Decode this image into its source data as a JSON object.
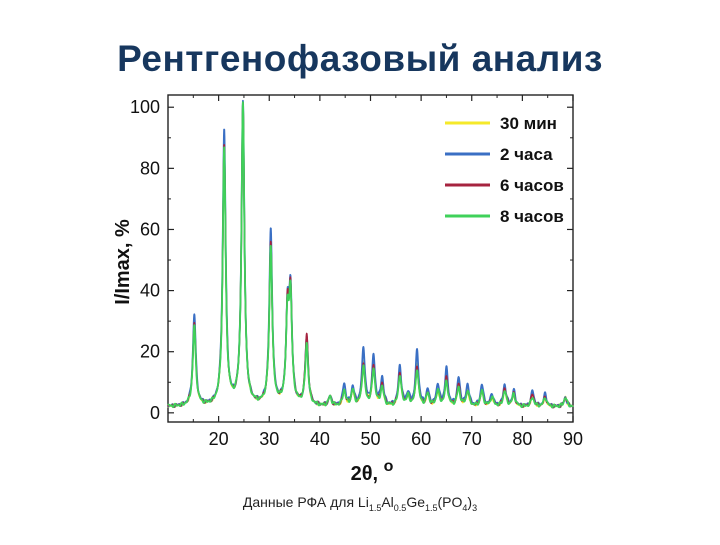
{
  "slide": {
    "title": "Рентгенофазовый анализ",
    "caption_prefix": "Данные РФА для ",
    "caption_formula": [
      {
        "t": "Li",
        "sub": false
      },
      {
        "t": "1.5",
        "sub": true
      },
      {
        "t": "Al",
        "sub": false
      },
      {
        "t": "0.5",
        "sub": true
      },
      {
        "t": "Ge",
        "sub": false
      },
      {
        "t": "1.5",
        "sub": true
      },
      {
        "t": "(PO",
        "sub": false
      },
      {
        "t": "4",
        "sub": true
      },
      {
        "t": ")",
        "sub": false
      },
      {
        "t": "3",
        "sub": true
      }
    ]
  },
  "chart_data": {
    "type": "line",
    "xlabel": "2θ, ",
    "xlabel_sup": "o",
    "ylabel": "I/Imax, %",
    "xlim": [
      10,
      90
    ],
    "ylim": [
      -3,
      104
    ],
    "xticks": [
      20,
      30,
      40,
      50,
      60,
      70,
      80,
      90
    ],
    "yticks": [
      0,
      20,
      40,
      60,
      80,
      100
    ],
    "grid": false,
    "legend_position": "top-right",
    "baseline": 2,
    "peak_width": 0.35,
    "peaks_x": [
      15.2,
      21.1,
      24.8,
      30.3,
      33.6,
      34.2,
      37.4,
      42.0,
      44.8,
      46.5,
      48.6,
      50.6,
      52.3,
      55.8,
      57.4,
      59.2,
      61.3,
      63.3,
      65.0,
      67.4,
      69.2,
      72.0,
      74.0,
      76.5,
      78.3,
      82.0,
      84.5,
      88.5
    ],
    "series": [
      {
        "name": "30 мин",
        "color": "#f5e92a",
        "peak_heights": [
          27,
          85,
          98,
          53,
          28,
          34,
          21,
          3,
          5,
          5,
          14,
          13,
          7,
          11,
          3,
          13,
          4,
          5,
          9,
          7,
          5,
          5,
          3,
          6,
          4,
          4,
          3,
          3
        ]
      },
      {
        "name": "2 часа",
        "color": "#3a6fc4",
        "peak_heights": [
          30,
          90,
          99,
          57,
          28,
          35,
          22,
          3,
          7,
          6,
          19,
          16,
          9,
          13,
          4,
          18,
          5,
          7,
          12,
          9,
          7,
          7,
          4,
          7,
          5,
          5,
          4,
          3
        ]
      },
      {
        "name": "6 часов",
        "color": "#a6233f",
        "peak_heights": [
          27,
          85,
          98,
          53,
          28,
          34,
          23,
          3,
          5,
          5,
          14,
          13,
          7,
          11,
          3,
          13,
          4,
          5,
          9,
          7,
          5,
          5,
          3,
          6,
          4,
          4,
          3,
          3
        ]
      },
      {
        "name": "8 часов",
        "color": "#3fd15a",
        "peak_heights": [
          26,
          84,
          98,
          52,
          27,
          33,
          20,
          3,
          5,
          5,
          13,
          12,
          6,
          10,
          3,
          12,
          4,
          5,
          8,
          6,
          5,
          5,
          3,
          5,
          4,
          3,
          3,
          3
        ]
      }
    ]
  }
}
